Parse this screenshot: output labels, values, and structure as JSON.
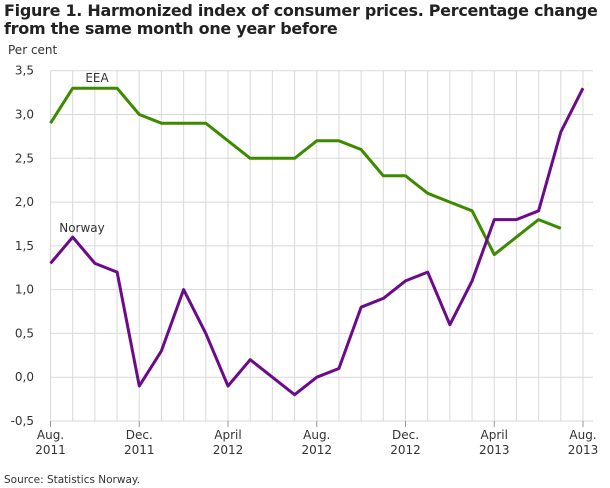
{
  "chart_data": {
    "type": "line",
    "title": "Figure 1. Harmonized index of consumer prices. Percentage change from the same month one year before",
    "ylabel": "Per cent",
    "xlabel": "",
    "source": "Source: Statistics Norway.",
    "ylim": [
      -0.5,
      3.5
    ],
    "yticks": [
      "-0,5",
      "0,0",
      "0,5",
      "1,0",
      "1,5",
      "2,0",
      "2,5",
      "3,0",
      "3,5"
    ],
    "ytick_values": [
      -0.5,
      0,
      0.5,
      1,
      1.5,
      2,
      2.5,
      3,
      3.5
    ],
    "x": [
      "2011-08",
      "2011-09",
      "2011-10",
      "2011-11",
      "2011-12",
      "2012-01",
      "2012-02",
      "2012-03",
      "2012-04",
      "2012-05",
      "2012-06",
      "2012-07",
      "2012-08",
      "2012-09",
      "2012-10",
      "2012-11",
      "2012-12",
      "2013-01",
      "2013-02",
      "2013-03",
      "2013-04",
      "2013-05",
      "2013-06",
      "2013-07",
      "2013-08"
    ],
    "xtick_labels": [
      {
        "month": "Aug.",
        "year": "2011",
        "index": 0
      },
      {
        "month": "Dec.",
        "year": "2011",
        "index": 4
      },
      {
        "month": "April",
        "year": "2012",
        "index": 8
      },
      {
        "month": "Aug.",
        "year": "2012",
        "index": 12
      },
      {
        "month": "Dec.",
        "year": "2012",
        "index": 16
      },
      {
        "month": "April",
        "year": "2013",
        "index": 20
      },
      {
        "month": "Aug.",
        "year": "2013",
        "index": 24
      }
    ],
    "grid": true,
    "series": [
      {
        "name": "EEA",
        "color": "#3d8a00",
        "values": [
          2.9,
          3.3,
          3.3,
          3.3,
          3.0,
          2.9,
          2.9,
          2.9,
          2.7,
          2.5,
          2.5,
          2.5,
          2.7,
          2.7,
          2.6,
          2.3,
          2.3,
          2.1,
          2.0,
          1.9,
          1.4,
          1.6,
          1.8,
          1.7,
          null
        ]
      },
      {
        "name": "Norway",
        "color": "#6b0a8a",
        "values": [
          1.3,
          1.6,
          1.3,
          1.2,
          -0.1,
          0.3,
          1.0,
          0.5,
          -0.1,
          0.2,
          0.0,
          -0.2,
          0.0,
          0.1,
          0.8,
          0.9,
          1.1,
          1.2,
          0.6,
          1.1,
          1.8,
          1.8,
          1.9,
          2.8,
          3.3
        ]
      }
    ]
  }
}
